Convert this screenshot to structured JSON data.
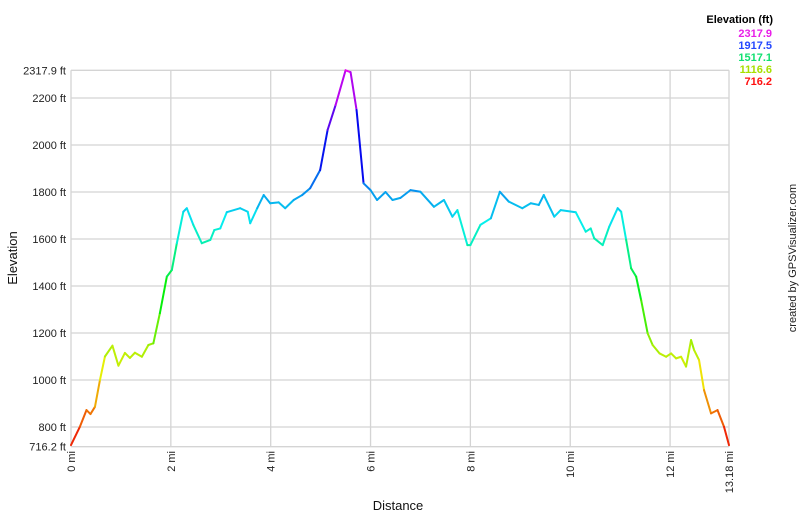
{
  "chart_data": {
    "type": "line",
    "xlabel": "Distance",
    "ylabel": "Elevation",
    "xlim": [
      0,
      13.18
    ],
    "ylim": [
      716.2,
      2317.9
    ],
    "x_unit": "mi",
    "y_unit": "ft",
    "x_ticks": [
      "0 mi",
      "2 mi",
      "4 mi",
      "6 mi",
      "8 mi",
      "10 mi",
      "12 mi",
      "13.18 mi"
    ],
    "x_tick_values": [
      0,
      2,
      4,
      6,
      8,
      10,
      12,
      13.18
    ],
    "y_ticks": [
      "716.2 ft",
      "800 ft",
      "1000 ft",
      "1200 ft",
      "1400 ft",
      "1600 ft",
      "1800 ft",
      "2000 ft",
      "2200 ft",
      "2317.9 ft"
    ],
    "y_tick_values": [
      716.2,
      800,
      1000,
      1200,
      1400,
      1600,
      1800,
      2000,
      2200,
      2317.9
    ],
    "grid": true,
    "color_by": "elevation",
    "legend": {
      "title": "Elevation (ft)",
      "placement": "top-right",
      "entries": [
        {
          "label": "2317.9",
          "color": "#e81ee8"
        },
        {
          "label": "1917.5",
          "color": "#2448ff"
        },
        {
          "label": "1517.1",
          "color": "#10e070"
        },
        {
          "label": "1116.6",
          "color": "#a8e000"
        },
        {
          "label": "716.2",
          "color": "#ff1010"
        }
      ]
    },
    "series": [
      {
        "x": [
          0,
          0.18,
          0.31,
          0.39,
          0.48,
          0.58,
          0.68,
          0.83,
          0.95,
          1.08,
          1.18,
          1.28,
          1.42,
          1.55,
          1.65,
          1.78,
          1.92,
          2.02,
          2.12,
          2.25,
          2.32,
          2.45,
          2.62,
          2.79,
          2.87,
          2.99,
          3.12,
          3.39,
          3.54,
          3.59,
          3.73,
          3.86,
          3.99,
          4.16,
          4.29,
          4.46,
          4.63,
          4.79,
          4.99,
          5.14,
          5.3,
          5.5,
          5.6,
          5.72,
          5.86,
          6.0,
          6.13,
          6.3,
          6.44,
          6.6,
          6.8,
          7.0,
          7.27,
          7.47,
          7.64,
          7.74,
          7.94,
          8.0,
          8.2,
          8.41,
          8.59,
          8.77,
          9.04,
          9.21,
          9.37,
          9.47,
          9.68,
          9.81,
          10.11,
          10.31,
          10.41,
          10.48,
          10.65,
          10.78,
          10.95,
          11.02,
          11.12,
          11.22,
          11.32,
          11.42,
          11.55,
          11.65,
          11.79,
          11.92,
          12.02,
          12.12,
          12.22,
          12.32,
          12.42,
          12.48,
          12.58,
          12.68,
          12.82,
          12.95,
          13.08,
          13.18
        ],
        "y": [
          723,
          802,
          872,
          855,
          886,
          1000,
          1100,
          1146,
          1061,
          1115,
          1094,
          1116,
          1099,
          1149,
          1156,
          1284,
          1440,
          1468,
          1582,
          1716,
          1731,
          1660,
          1582,
          1596,
          1638,
          1645,
          1714,
          1731,
          1716,
          1667,
          1731,
          1787,
          1752,
          1756,
          1731,
          1766,
          1787,
          1816,
          1893,
          2064,
          2170,
          2318,
          2310,
          2149,
          1837,
          1808,
          1766,
          1800,
          1766,
          1775,
          1808,
          1801,
          1737,
          1766,
          1695,
          1723,
          1574,
          1574,
          1660,
          1688,
          1801,
          1759,
          1731,
          1752,
          1745,
          1787,
          1695,
          1723,
          1714,
          1631,
          1645,
          1603,
          1574,
          1652,
          1731,
          1716,
          1596,
          1475,
          1440,
          1340,
          1199,
          1149,
          1113,
          1099,
          1113,
          1092,
          1099,
          1057,
          1170,
          1128,
          1085,
          957,
          858,
          872,
          801,
          723
        ]
      }
    ]
  },
  "credit": "created by GPSVisualizer.com"
}
